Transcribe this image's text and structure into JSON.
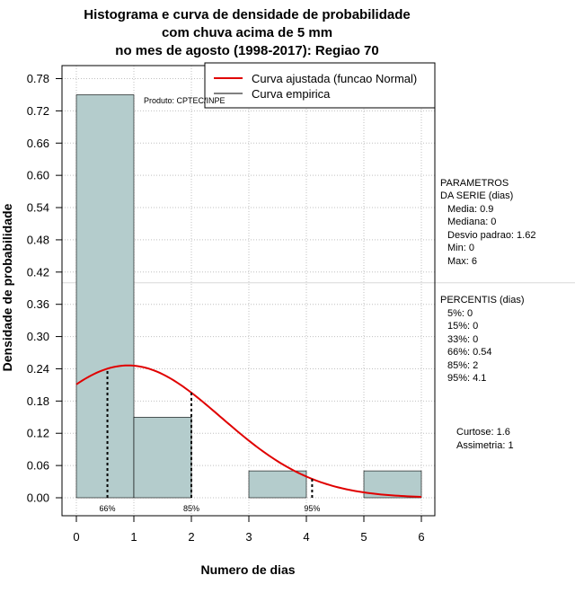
{
  "chart_data": {
    "type": "bar",
    "title": [
      "Histograma e curva de densidade de probabilidade",
      "com chuva acima de 5 mm",
      "no mes de agosto (1998-2017): Regiao 70"
    ],
    "xlabel": "Numero de dias",
    "ylabel": "Densidade de probabilidade",
    "xlim": [
      0,
      6
    ],
    "ylim": [
      0,
      0.78
    ],
    "x_ticks": [
      0,
      1,
      2,
      3,
      4,
      5,
      6
    ],
    "y_ticks": [
      "0.00",
      "0.06",
      "0.12",
      "0.18",
      "0.24",
      "0.30",
      "0.36",
      "0.42",
      "0.48",
      "0.54",
      "0.60",
      "0.66",
      "0.72",
      "0.78"
    ],
    "bins": [
      {
        "from": 0,
        "to": 1,
        "value": 0.75
      },
      {
        "from": 1,
        "to": 2,
        "value": 0.15
      },
      {
        "from": 2,
        "to": 3,
        "value": 0.0
      },
      {
        "from": 3,
        "to": 4,
        "value": 0.05
      },
      {
        "from": 4,
        "to": 5,
        "value": 0.0
      },
      {
        "from": 5,
        "to": 6,
        "value": 0.05
      }
    ],
    "normal_curve": {
      "mean": 0.9,
      "sd": 1.62
    },
    "percentile_markers": [
      {
        "x": 0.54,
        "label": "66%"
      },
      {
        "x": 2,
        "label": "85%"
      },
      {
        "x": 4.1,
        "label": "95%"
      }
    ],
    "legend": {
      "position": "top-right",
      "entries": [
        {
          "label": "Curva ajustada (funcao Normal)",
          "color": "#e00000"
        },
        {
          "label": "Curva empirica",
          "color": "#000000"
        }
      ]
    },
    "grid": true,
    "colors": {
      "bar_fill": "#b4cccc",
      "curve": "#e00000"
    }
  },
  "watermark": "Produto: CPTEC/INPE",
  "parametros": {
    "heading": [
      "PARAMETROS",
      "DA SERIE (dias)"
    ],
    "items": [
      "Media: 0.9",
      "Mediana: 0",
      "Desvio padrao: 1.62",
      "Min: 0",
      "Max: 6"
    ]
  },
  "percentis": {
    "heading": "PERCENTIS (dias)",
    "items": [
      "5%: 0",
      "15%: 0",
      "33%: 0",
      "66%: 0.54",
      "85%: 2",
      "95%: 4.1"
    ]
  },
  "shape_stats": [
    "Curtose: 1.6",
    "Assimetria: 1"
  ]
}
